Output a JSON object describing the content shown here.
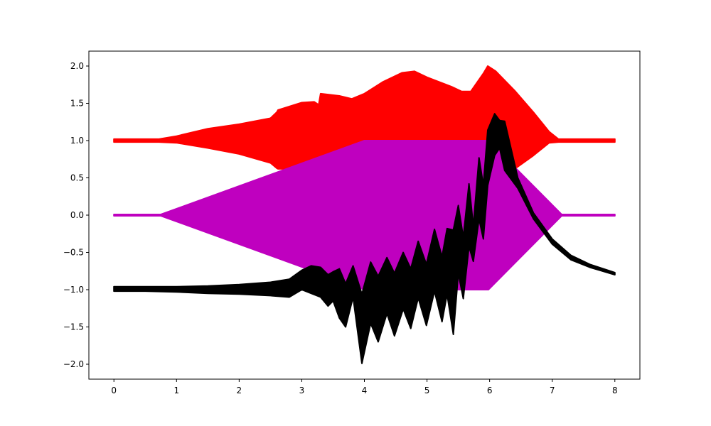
{
  "chart_data": {
    "type": "area",
    "xlim": [
      -0.4,
      8.4
    ],
    "ylim": [
      -2.2,
      2.2
    ],
    "xticks": [
      0,
      1,
      2,
      3,
      4,
      5,
      6,
      7,
      8
    ],
    "xtick_labels": [
      "0",
      "1",
      "2",
      "3",
      "4",
      "5",
      "6",
      "7",
      "8"
    ],
    "yticks": [
      2.0,
      1.5,
      1.0,
      0.5,
      0.0,
      -0.5,
      -1.0,
      -1.5,
      -2.0
    ],
    "ytick_labels": [
      "2.0",
      "1.5",
      "1.0",
      "0.5",
      "0.0",
      "−0.5",
      "−1.0",
      "−1.5",
      "−2.0"
    ],
    "grid": false,
    "series": [
      {
        "color": "#ff0000",
        "kind": "band",
        "x": [
          0,
          0.72,
          1.0,
          1.5,
          2.0,
          2.5,
          2.6,
          2.62,
          3.0,
          3.2,
          3.27,
          3.3,
          3.6,
          3.8,
          4.0,
          4.3,
          4.6,
          4.8,
          5.0,
          5.4,
          5.55,
          5.7,
          5.9,
          5.97,
          6.1,
          6.4,
          6.7,
          6.95,
          7.1,
          7.2,
          8.0
        ],
        "upper": [
          1.02,
          1.02,
          1.06,
          1.16,
          1.22,
          1.3,
          1.38,
          1.41,
          1.51,
          1.52,
          1.48,
          1.63,
          1.6,
          1.56,
          1.63,
          1.79,
          1.91,
          1.93,
          1.85,
          1.72,
          1.66,
          1.66,
          1.9,
          2.0,
          1.93,
          1.67,
          1.38,
          1.12,
          1.02,
          1.02,
          1.02
        ],
        "lower": [
          0.98,
          0.98,
          0.97,
          0.9,
          0.82,
          0.7,
          0.63,
          0.62,
          0.62,
          0.63,
          0.63,
          0.6,
          0.6,
          0.6,
          0.6,
          0.6,
          0.6,
          0.6,
          0.6,
          0.6,
          0.6,
          0.58,
          0.55,
          0.52,
          0.55,
          0.62,
          0.8,
          0.97,
          0.98,
          0.98,
          0.98
        ]
      },
      {
        "color": "#bf00bf",
        "kind": "band",
        "x": [
          0,
          0.75,
          4.0,
          5.98,
          7.15,
          8.0
        ],
        "upper": [
          0.01,
          0.01,
          1.0,
          1.0,
          0.01,
          0.01
        ],
        "lower": [
          -0.01,
          -0.01,
          -1.0,
          -1.0,
          -0.01,
          -0.01
        ]
      },
      {
        "color": "#000000",
        "kind": "band",
        "x": [
          0,
          0.5,
          1.0,
          1.5,
          2.0,
          2.5,
          2.8,
          3.0,
          3.15,
          3.3,
          3.42,
          3.5,
          3.6,
          3.7,
          3.82,
          3.96,
          4.1,
          4.22,
          4.36,
          4.48,
          4.62,
          4.74,
          4.86,
          4.99,
          5.12,
          5.24,
          5.32,
          5.42,
          5.5,
          5.58,
          5.67,
          5.74,
          5.83,
          5.9,
          5.97,
          6.08,
          6.16,
          6.24,
          6.45,
          6.7,
          7.0,
          7.3,
          7.6,
          8.0
        ],
        "upper": [
          -0.96,
          -0.96,
          -0.96,
          -0.95,
          -0.93,
          -0.9,
          -0.86,
          -0.74,
          -0.68,
          -0.7,
          -0.8,
          -0.76,
          -0.72,
          -0.92,
          -0.68,
          -1.06,
          -0.63,
          -0.82,
          -0.57,
          -0.78,
          -0.5,
          -0.72,
          -0.35,
          -0.66,
          -0.19,
          -0.56,
          -0.18,
          -0.2,
          0.13,
          -0.3,
          0.42,
          -0.15,
          0.77,
          0.4,
          1.14,
          1.36,
          1.27,
          1.26,
          0.5,
          0.03,
          -0.32,
          -0.54,
          -0.66,
          -0.77
        ],
        "lower": [
          -1.02,
          -1.02,
          -1.03,
          -1.05,
          -1.06,
          -1.08,
          -1.1,
          -1.0,
          -1.05,
          -1.1,
          -1.22,
          -1.15,
          -1.38,
          -1.5,
          -1.1,
          -1.99,
          -1.45,
          -1.7,
          -1.32,
          -1.62,
          -1.26,
          -1.52,
          -1.11,
          -1.48,
          -1.02,
          -1.43,
          -1.06,
          -1.6,
          -0.78,
          -1.12,
          -0.42,
          -0.62,
          -0.05,
          -0.32,
          0.4,
          0.8,
          0.9,
          0.6,
          0.36,
          -0.05,
          -0.39,
          -0.6,
          -0.7,
          -0.8
        ]
      }
    ]
  }
}
